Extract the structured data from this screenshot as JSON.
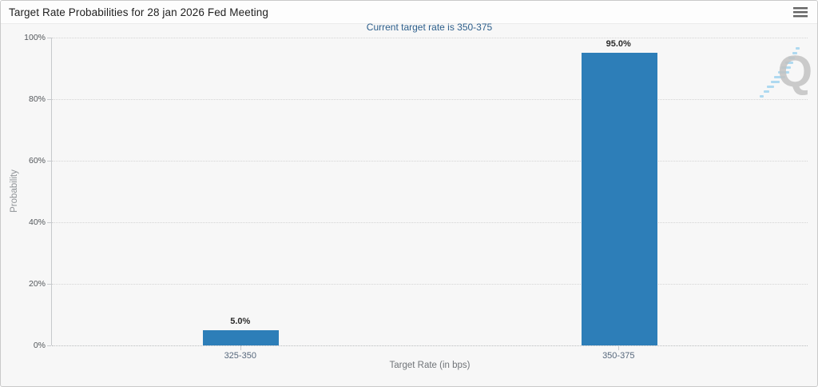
{
  "header": {
    "title": "Target Rate Probabilities for 28 jan 2026 Fed Meeting",
    "menu_icon": "hamburger-icon"
  },
  "chart": {
    "subtitle": "Current target rate is 350-375",
    "ylabel": "Probability",
    "xlabel": "Target Rate (in bps)",
    "watermark_letter": "Q"
  },
  "chart_data": {
    "type": "bar",
    "title": "Target Rate Probabilities for 28 jan 2026 Fed Meeting",
    "subtitle": "Current target rate is 350-375",
    "categories": [
      "325-350",
      "350-375"
    ],
    "values": [
      5.0,
      95.0
    ],
    "data_labels": [
      "5.0%",
      "95.0%"
    ],
    "xlabel": "Target Rate (in bps)",
    "ylabel": "Probability",
    "ylim": [
      0,
      100
    ],
    "ytick_values": [
      0,
      20,
      40,
      60,
      80,
      100
    ],
    "ytick_labels": [
      "0%",
      "20%",
      "40%",
      "60%",
      "80%",
      "100%"
    ],
    "grid": "horizontal-dotted",
    "legend": "none",
    "bar_color": "#2d7eb8"
  },
  "colors": {
    "bar": "#2d7eb8",
    "subtitle_text": "#2d5f8c",
    "background": "#f7f7f7",
    "grid": "#d4d4d4",
    "watermark_blue": "#a5d5ee",
    "watermark_grey": "#c3c3c3"
  }
}
